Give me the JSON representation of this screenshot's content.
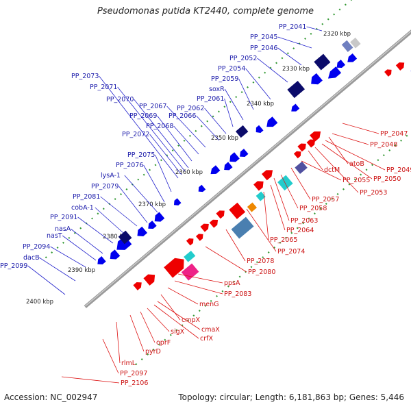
{
  "title": "Pseudomonas putida KT2440, complete genome",
  "accession": "Accession: NC_002947",
  "summary": "Topology: circular; Length: 6,181,863 bp; Genes: 5,446",
  "colors": {
    "forward": "#0000ee",
    "reverse": "#ee0000",
    "backbone": "#888888",
    "ruler_dot": "#339933",
    "label_forward": "#1a1aaa",
    "label_reverse": "#cc1111"
  },
  "ruler_labels": [
    "2320 kbp",
    "2330 kbp",
    "2340 kbp",
    "2350 kbp",
    "2360 kbp",
    "2370 kbp",
    "2380 kbp",
    "2390 kbp",
    "2400 kbp"
  ],
  "upper_labels": [
    "PP_2041",
    "PP_2045",
    "PP_2046",
    "PP_2052",
    "PP_2054",
    "PP_2059",
    "soxR",
    "PP_2061",
    "PP_2062",
    "PP_2066",
    "PP_2067",
    "PP_2068",
    "PP_2069",
    "PP_2070",
    "PP_2071",
    "PP_2072",
    "PP_2073",
    "PP_2075",
    "PP_2076",
    "lysA-1",
    "PP_2079",
    "PP_2081",
    "cobA-1",
    "PP_2091",
    "nasA",
    "nasT",
    "PP_2094",
    "dacB",
    "PP_2099"
  ],
  "lower_labels": [
    "PP_2047",
    "PP_2048",
    "atoB",
    "PP_2049",
    "PP_2050",
    "dctM",
    "PP_2053",
    "PP_2055",
    "PP_2057",
    "PP_2058",
    "PP_2063",
    "PP_2064",
    "PP_2065",
    "PP_2074",
    "PP_2078",
    "PP_2080",
    "ppsA",
    "PP_2083",
    "menG",
    "cmpX",
    "cmaX",
    "crfX",
    "sigX",
    "oprF",
    "pyrD",
    "rlmL",
    "PP_2097",
    "PP_2106"
  ]
}
